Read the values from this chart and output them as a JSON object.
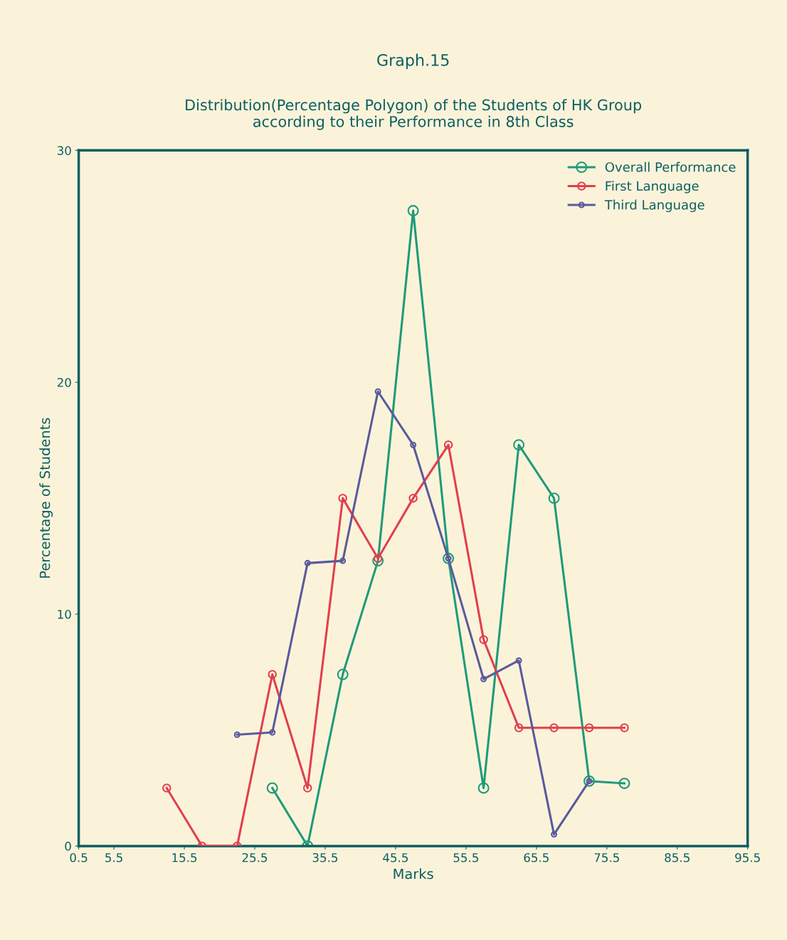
{
  "chart_data": {
    "type": "line",
    "title": "Graph.15",
    "subtitle": "Distribution(Percentage Polygon) of the Students of HK Group\naccording to their Performance in 8th Class",
    "xlabel": "Marks",
    "ylabel": "Percentage of Students",
    "series": [
      {
        "name": "Overall Performance",
        "color": "#1f9a7c",
        "x": [
          28,
          33,
          38,
          43,
          48,
          53,
          58,
          63,
          68,
          73,
          78
        ],
        "values": [
          2.5,
          0,
          7.4,
          12.3,
          27.4,
          12.4,
          2.5,
          17.3,
          15,
          2.8,
          2.7
        ]
      },
      {
        "name": "First Language",
        "color": "#e0404e",
        "x": [
          13,
          18,
          23,
          28,
          33,
          38,
          43,
          48,
          53,
          58,
          63,
          68,
          73,
          78
        ],
        "values": [
          2.5,
          0,
          0,
          7.4,
          2.5,
          15,
          12.4,
          15,
          17.3,
          8.9,
          5.1,
          5.1,
          5.1,
          5.1
        ]
      },
      {
        "name": "Third Language",
        "color": "#5a5a9c",
        "x": [
          23,
          28,
          33,
          38,
          43,
          48,
          53,
          58,
          63,
          68,
          73
        ],
        "values": [
          4.8,
          4.9,
          12.2,
          12.3,
          19.6,
          17.3,
          12.4,
          7.2,
          8,
          0.5,
          2.8
        ]
      }
    ],
    "xlim": [
      0.5,
      95.5
    ],
    "ylim": [
      0,
      30
    ],
    "xticks": [
      0.5,
      5.5,
      15.5,
      25.5,
      35.5,
      45.5,
      55.5,
      65.5,
      75.5,
      85.5,
      95.5
    ],
    "yticks": [
      0,
      10,
      20,
      30
    ],
    "marker": "circle",
    "line_style": "solid",
    "grid": false,
    "legend": "top right"
  }
}
